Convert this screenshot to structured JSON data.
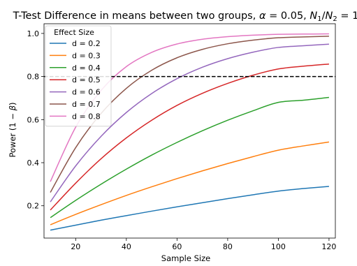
{
  "chart_data": {
    "type": "line",
    "title": {
      "main": "T-Test Difference in means between two groups, ",
      "alpha_sym": "α",
      "alpha_val": " = 0.05, ",
      "n1": "N",
      "n1_sub": "1",
      "slash": "/",
      "n2": "N",
      "n2_sub": "2",
      "ratio": " = 1"
    },
    "xlabel": "Sample Size",
    "ylabel": {
      "prefix": "Power (1 − ",
      "beta": "β",
      "suffix": ")"
    },
    "xlim": [
      7.5,
      122.5
    ],
    "ylim": [
      0.05,
      1.045
    ],
    "xticks": [
      20,
      40,
      60,
      80,
      100,
      120
    ],
    "yticks": [
      0.2,
      0.4,
      0.6,
      0.8,
      1.0
    ],
    "ytick_labels": [
      "0.2",
      "0.4",
      "0.6",
      "0.8",
      "1.0"
    ],
    "xtick_labels": [
      "20",
      "40",
      "60",
      "80",
      "100",
      "120"
    ],
    "reference_line": {
      "y": 0.8,
      "style": "dashed",
      "color": "#000000"
    },
    "legend": {
      "title": "Effect Size",
      "placement": "top-left"
    },
    "grid": false,
    "series": [
      {
        "name": "d = 0.2",
        "color": "#1f77b4",
        "x": [
          10,
          20,
          30,
          40,
          50,
          60,
          70,
          80,
          90,
          100,
          110,
          120
        ],
        "values": [
          0.087,
          0.11,
          0.133,
          0.154,
          0.175,
          0.195,
          0.214,
          0.233,
          0.251,
          0.268,
          0.28,
          0.29
        ]
      },
      {
        "name": "d = 0.3",
        "color": "#ff7f0e",
        "x": [
          10,
          20,
          30,
          40,
          50,
          60,
          70,
          80,
          90,
          100,
          110,
          120
        ],
        "values": [
          0.112,
          0.16,
          0.205,
          0.248,
          0.288,
          0.326,
          0.362,
          0.396,
          0.428,
          0.458,
          0.478,
          0.496
        ]
      },
      {
        "name": "d = 0.4",
        "color": "#2ca02c",
        "x": [
          10,
          20,
          30,
          40,
          50,
          60,
          70,
          80,
          90,
          100,
          110,
          120
        ],
        "values": [
          0.145,
          0.225,
          0.3,
          0.37,
          0.435,
          0.494,
          0.548,
          0.597,
          0.641,
          0.68,
          0.69,
          0.703
        ]
      },
      {
        "name": "d = 0.5",
        "color": "#d62728",
        "x": [
          10,
          20,
          30,
          40,
          50,
          60,
          70,
          80,
          90,
          100,
          110,
          120
        ],
        "values": [
          0.18,
          0.305,
          0.418,
          0.515,
          0.597,
          0.666,
          0.722,
          0.768,
          0.806,
          0.835,
          0.848,
          0.858
        ]
      },
      {
        "name": "d = 0.6",
        "color": "#9467bd",
        "x": [
          10,
          20,
          30,
          40,
          50,
          60,
          70,
          80,
          90,
          100,
          110,
          120
        ],
        "values": [
          0.218,
          0.385,
          0.522,
          0.633,
          0.721,
          0.79,
          0.843,
          0.883,
          0.913,
          0.935,
          0.943,
          0.95
        ]
      },
      {
        "name": "d = 0.7",
        "color": "#8c564b",
        "x": [
          10,
          20,
          30,
          40,
          50,
          60,
          70,
          80,
          90,
          100,
          110,
          120
        ],
        "values": [
          0.262,
          0.47,
          0.628,
          0.745,
          0.829,
          0.887,
          0.926,
          0.952,
          0.969,
          0.98,
          0.984,
          0.987
        ]
      },
      {
        "name": "d = 0.8",
        "color": "#e377c2",
        "x": [
          10,
          20,
          30,
          40,
          50,
          60,
          70,
          80,
          90,
          100,
          110,
          120
        ],
        "values": [
          0.312,
          0.565,
          0.735,
          0.846,
          0.912,
          0.951,
          0.973,
          0.985,
          0.992,
          0.996,
          0.997,
          0.998
        ]
      }
    ]
  }
}
